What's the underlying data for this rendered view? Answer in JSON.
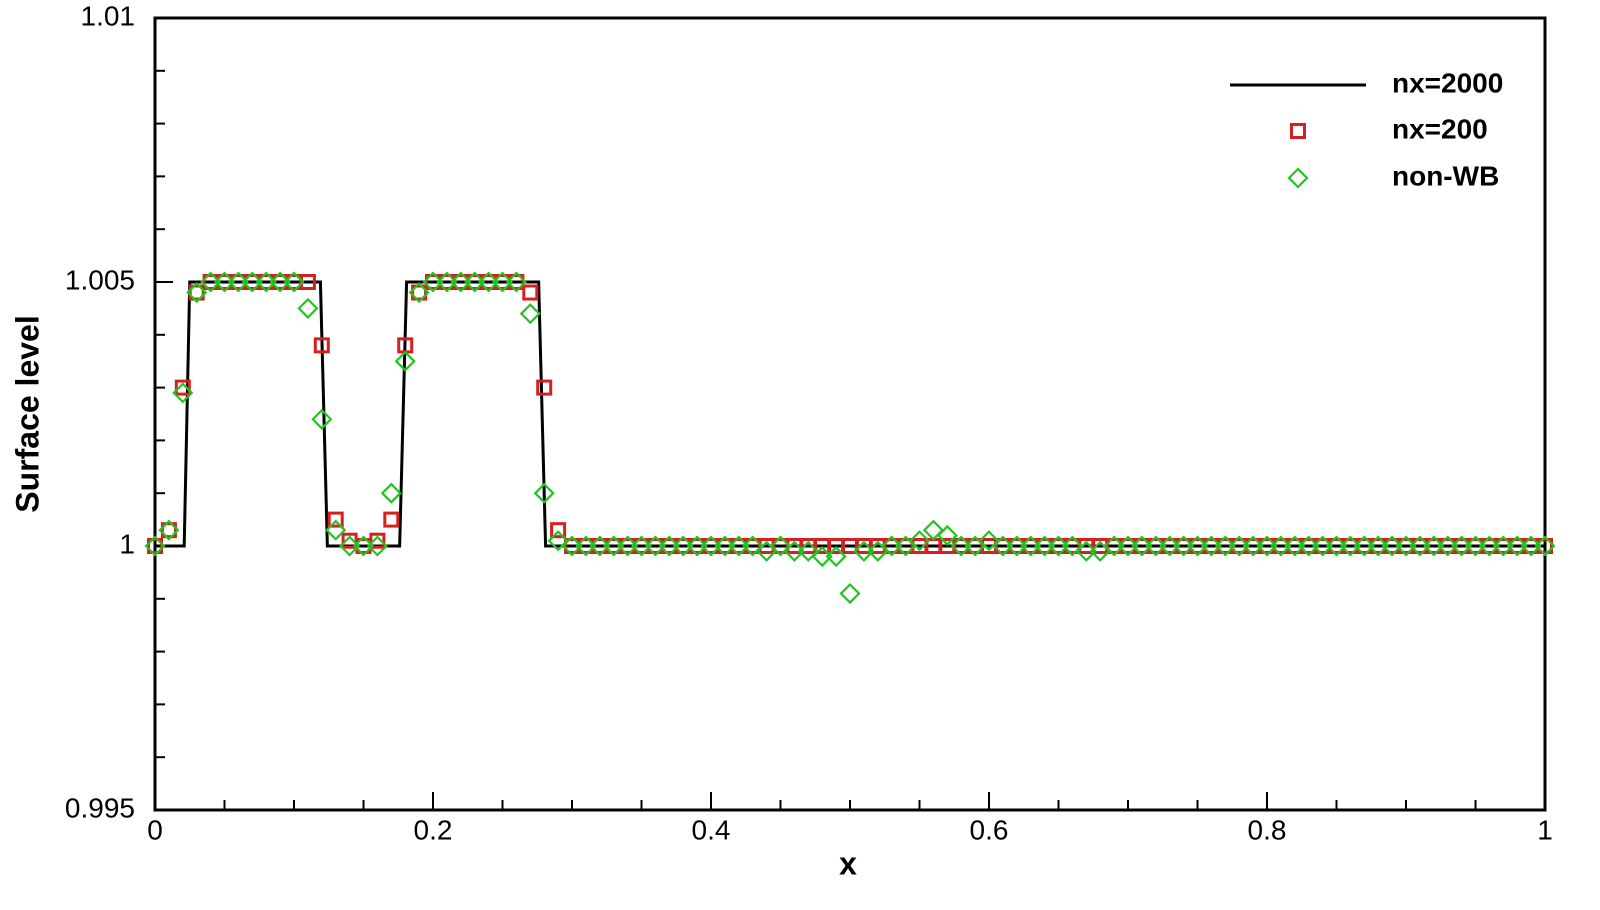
{
  "chart_data": {
    "type": "line",
    "xlabel": "x",
    "ylabel": "Surface level",
    "xlim": [
      0,
      1
    ],
    "ylim": [
      0.995,
      1.01
    ],
    "xticks": [
      0,
      0.2,
      0.4,
      0.6,
      0.8,
      1
    ],
    "yticks": [
      0.995,
      1,
      1.005,
      1.01
    ],
    "xminor_ticks": [
      0.05,
      0.1,
      0.15,
      0.25,
      0.3,
      0.35,
      0.45,
      0.5,
      0.55,
      0.65,
      0.7,
      0.75,
      0.85,
      0.9,
      0.95
    ],
    "yminor_ticks": [
      0.996,
      0.997,
      0.998,
      0.999,
      1.001,
      1.002,
      1.003,
      1.004,
      1.006,
      1.007,
      1.008,
      1.009
    ],
    "legend": "upper right",
    "x": [
      0,
      0.01,
      0.02,
      0.03,
      0.04,
      0.05,
      0.06,
      0.07,
      0.08,
      0.09,
      0.1,
      0.11,
      0.12,
      0.13,
      0.14,
      0.15,
      0.16,
      0.17,
      0.18,
      0.19,
      0.2,
      0.21,
      0.22,
      0.23,
      0.24,
      0.25,
      0.26,
      0.27,
      0.28,
      0.29,
      0.3,
      0.31,
      0.32,
      0.33,
      0.34,
      0.35,
      0.36,
      0.37,
      0.38,
      0.39,
      0.4,
      0.41,
      0.42,
      0.43,
      0.44,
      0.45,
      0.46,
      0.47,
      0.48,
      0.49,
      0.5,
      0.51,
      0.52,
      0.53,
      0.54,
      0.55,
      0.56,
      0.57,
      0.58,
      0.59,
      0.6,
      0.61,
      0.62,
      0.63,
      0.64,
      0.65,
      0.66,
      0.67,
      0.68,
      0.69,
      0.7,
      0.71,
      0.72,
      0.73,
      0.74,
      0.75,
      0.76,
      0.77,
      0.78,
      0.79,
      0.8,
      0.81,
      0.82,
      0.83,
      0.84,
      0.85,
      0.86,
      0.87,
      0.88,
      0.89,
      0.9,
      0.91,
      0.92,
      0.93,
      0.94,
      0.95,
      0.96,
      0.97,
      0.98,
      0.99,
      1
    ],
    "series": [
      {
        "name": "nx=2000",
        "color": "#000000",
        "style": "line",
        "x": [
          0,
          0.021,
          0.025,
          0.119,
          0.124,
          0.176,
          0.181,
          0.276,
          0.281,
          1
        ],
        "values": [
          1,
          1,
          1.005,
          1.005,
          1,
          1,
          1.005,
          1.005,
          1,
          1
        ]
      },
      {
        "name": "nx=200",
        "color": "#d42020",
        "style": "square",
        "values": [
          1,
          1.0003,
          1.003,
          1.0048,
          1.005,
          1.005,
          1.005,
          1.005,
          1.005,
          1.005,
          1.005,
          1.005,
          1.0038,
          1.0005,
          1.0001,
          1,
          1.0001,
          1.0005,
          1.0038,
          1.0048,
          1.005,
          1.005,
          1.005,
          1.005,
          1.005,
          1.005,
          1.005,
          1.0048,
          1.003,
          1.0003,
          1,
          1,
          1,
          1,
          1,
          1,
          1,
          1,
          1,
          1,
          1,
          1,
          1,
          1,
          1,
          1,
          1,
          1,
          1,
          1,
          1,
          1,
          1,
          1,
          1,
          1,
          1,
          1,
          1,
          1,
          1,
          1,
          1,
          1,
          1,
          1,
          1,
          1,
          1,
          1,
          1,
          1,
          1,
          1,
          1,
          1,
          1,
          1,
          1,
          1,
          1,
          1,
          1,
          1,
          1,
          1,
          1,
          1,
          1,
          1,
          1,
          1,
          1,
          1,
          1,
          1,
          1,
          1,
          1,
          1,
          1
        ]
      },
      {
        "name": "non-WB",
        "color": "#22c322",
        "style": "diamond",
        "values": [
          1,
          1.0003,
          1.0029,
          1.0048,
          1.005,
          1.005,
          1.005,
          1.005,
          1.005,
          1.005,
          1.005,
          1.0045,
          1.0024,
          1.0003,
          1,
          1,
          1,
          1.001,
          1.0035,
          1.0048,
          1.005,
          1.005,
          1.005,
          1.005,
          1.005,
          1.005,
          1.005,
          1.0044,
          1.001,
          1.0001,
          1,
          1,
          1,
          1,
          1,
          1,
          1,
          1,
          1,
          1,
          1,
          1,
          1,
          1,
          0.9999,
          1,
          0.9999,
          0.9999,
          0.9998,
          0.9998,
          0.9991,
          0.9999,
          0.9999,
          1,
          1,
          1.0001,
          1.0003,
          1.0002,
          1,
          1,
          1.0001,
          1,
          1,
          1,
          1,
          1,
          1,
          0.9999,
          0.9999,
          1,
          1,
          1,
          1,
          1,
          1,
          1,
          1,
          1,
          1,
          1,
          1,
          1,
          1,
          1,
          1,
          1,
          1,
          1,
          1,
          1,
          1,
          1,
          1,
          1,
          1,
          1,
          1,
          1,
          1,
          1,
          1
        ]
      }
    ]
  }
}
